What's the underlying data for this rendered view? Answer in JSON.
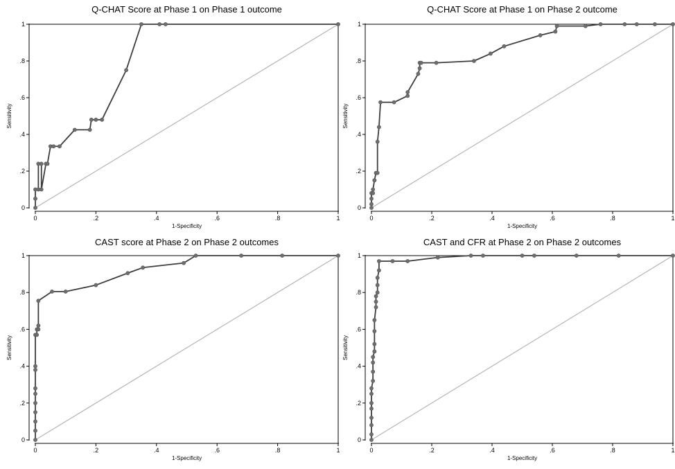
{
  "figure": {
    "background": "#ffffff",
    "line_color": "#3c3c3c",
    "marker_color": "#6e6e6e",
    "reference_color": "#b4b4b4"
  },
  "chart_data": [
    {
      "type": "line",
      "title": "Q-CHAT Score at Phase 1 on Phase 1 outcome",
      "xlabel": "1-Specificity",
      "ylabel": "Sensitivity",
      "xlim": [
        0,
        1
      ],
      "ylim": [
        0,
        1
      ],
      "xticks": [
        "0",
        ".2",
        ".4",
        ".6",
        ".8",
        "1"
      ],
      "yticks": [
        "0",
        ".2",
        ".4",
        ".6",
        ".8",
        "1"
      ],
      "grid": false,
      "reference_line": [
        [
          0,
          0
        ],
        [
          1,
          1
        ]
      ],
      "series": [
        {
          "x": [
            0,
            0,
            0,
            0.01,
            0.01,
            0.02,
            0.02,
            0.035,
            0.04,
            0.05,
            0.06,
            0.08,
            0.13,
            0.18,
            0.185,
            0.2,
            0.22,
            0.3,
            0.35,
            0.41,
            0.43,
            1
          ],
          "y": [
            0,
            0.05,
            0.1,
            0.1,
            0.24,
            0.24,
            0.1,
            0.24,
            0.24,
            0.335,
            0.335,
            0.335,
            0.425,
            0.425,
            0.48,
            0.48,
            0.48,
            0.75,
            1,
            1,
            1,
            1
          ]
        }
      ]
    },
    {
      "type": "line",
      "title": "Q-CHAT Score at Phase 1 on Phase 2 outcome",
      "xlabel": "1-Specificity",
      "ylabel": "Sensitivity",
      "xlim": [
        0,
        1
      ],
      "ylim": [
        0,
        1
      ],
      "xticks": [
        "0",
        ".2",
        ".4",
        ".6",
        ".8",
        "1"
      ],
      "yticks": [
        "0",
        ".2",
        ".4",
        ".6",
        ".8",
        "1"
      ],
      "grid": false,
      "reference_line": [
        [
          0,
          0
        ],
        [
          1,
          1
        ]
      ],
      "series": [
        {
          "x": [
            0,
            0,
            0,
            0,
            0.005,
            0.005,
            0.01,
            0.01,
            0.015,
            0.02,
            0.02,
            0.025,
            0.03,
            0.075,
            0.12,
            0.12,
            0.155,
            0.16,
            0.16,
            0.165,
            0.215,
            0.34,
            0.395,
            0.44,
            0.56,
            0.61,
            0.615,
            0.71,
            0.76,
            0.84,
            0.88,
            0.94,
            1
          ],
          "y": [
            0,
            0.02,
            0.05,
            0.08,
            0.08,
            0.1,
            0.15,
            0.15,
            0.19,
            0.19,
            0.36,
            0.44,
            0.575,
            0.575,
            0.61,
            0.63,
            0.73,
            0.76,
            0.79,
            0.79,
            0.79,
            0.8,
            0.84,
            0.88,
            0.94,
            0.96,
            0.99,
            0.99,
            1,
            1,
            1,
            1,
            1
          ]
        }
      ]
    },
    {
      "type": "line",
      "title": "CAST score at Phase 2 on Phase 2 outcomes",
      "xlabel": "1-Specificity",
      "ylabel": "Sensitivity",
      "xlim": [
        0,
        1
      ],
      "ylim": [
        0,
        1
      ],
      "xticks": [
        "0",
        ".2",
        ".4",
        ".6",
        ".8",
        "1"
      ],
      "yticks": [
        "0",
        ".2",
        ".4",
        ".6",
        ".8",
        "1"
      ],
      "grid": false,
      "reference_line": [
        [
          0,
          0
        ],
        [
          1,
          1
        ]
      ],
      "series": [
        {
          "x": [
            0,
            0,
            0,
            0,
            0,
            0,
            0,
            0,
            0,
            0,
            0.005,
            0.005,
            0.01,
            0.01,
            0.01,
            0.055,
            0.1,
            0.2,
            0.305,
            0.355,
            0.49,
            0.53,
            0.68,
            0.815,
            1
          ],
          "y": [
            0,
            0.05,
            0.1,
            0.15,
            0.2,
            0.25,
            0.28,
            0.38,
            0.4,
            0.57,
            0.57,
            0.6,
            0.6,
            0.62,
            0.755,
            0.805,
            0.805,
            0.84,
            0.905,
            0.935,
            0.96,
            1,
            1,
            1,
            1
          ]
        }
      ]
    },
    {
      "type": "line",
      "title": "CAST and CFR at Phase 2 on Phase 2 outcomes",
      "xlabel": "1-Specificity",
      "ylabel": "Sensitivity",
      "xlim": [
        0,
        1
      ],
      "ylim": [
        0,
        1
      ],
      "xticks": [
        "0",
        ".2",
        ".4",
        ".6",
        ".8",
        "1"
      ],
      "yticks": [
        "0",
        ".2",
        ".4",
        ".6",
        ".8",
        "1"
      ],
      "grid": false,
      "reference_line": [
        [
          0,
          0
        ],
        [
          1,
          1
        ]
      ],
      "series": [
        {
          "x": [
            0,
            0,
            0,
            0,
            0,
            0,
            0,
            0,
            0.005,
            0.005,
            0.005,
            0.005,
            0.01,
            0.01,
            0.01,
            0.01,
            0.015,
            0.015,
            0.015,
            0.02,
            0.02,
            0.02,
            0.025,
            0.025,
            0.07,
            0.12,
            0.22,
            0.33,
            0.37,
            0.5,
            0.54,
            0.68,
            0.82,
            1
          ],
          "y": [
            0,
            0.03,
            0.08,
            0.12,
            0.17,
            0.2,
            0.25,
            0.28,
            0.32,
            0.37,
            0.42,
            0.45,
            0.48,
            0.52,
            0.59,
            0.65,
            0.72,
            0.75,
            0.78,
            0.8,
            0.84,
            0.88,
            0.92,
            0.97,
            0.97,
            0.97,
            0.99,
            1,
            1,
            1,
            1,
            1,
            1,
            1
          ]
        }
      ]
    }
  ]
}
